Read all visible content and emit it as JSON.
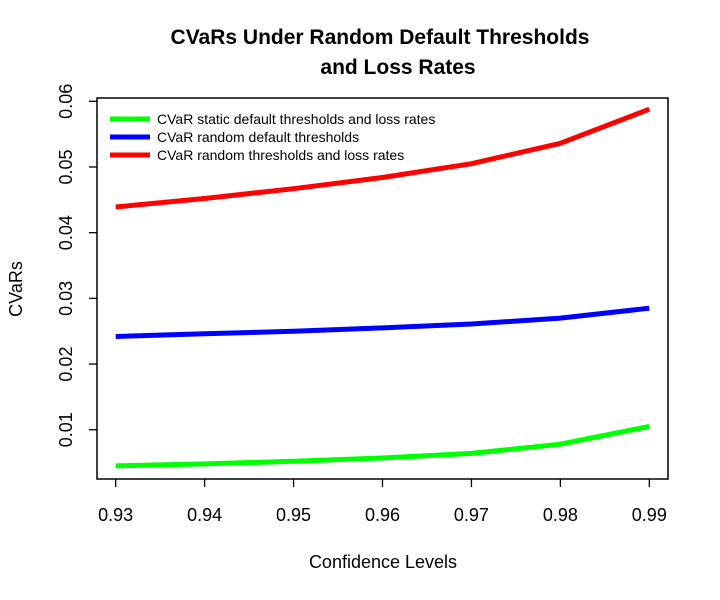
{
  "chart_data": {
    "type": "line",
    "title_lines": [
      "CVaRs Under Random Default Thresholds",
      "and Loss Rates"
    ],
    "xlabel": "Confidence Levels",
    "ylabel": "CVaRs",
    "x": [
      0.93,
      0.94,
      0.95,
      0.96,
      0.97,
      0.98,
      0.99
    ],
    "x_tick_labels": [
      "0.93",
      "0.94",
      "0.95",
      "0.96",
      "0.97",
      "0.98",
      "0.99"
    ],
    "y_ticks": [
      0.01,
      0.02,
      0.03,
      0.04,
      0.05,
      0.06
    ],
    "y_tick_labels": [
      "0.01",
      "0.02",
      "0.03",
      "0.04",
      "0.05",
      "0.06"
    ],
    "xlim": [
      0.9279,
      0.9921
    ],
    "ylim": [
      0.0025,
      0.0605
    ],
    "grid": false,
    "legend_position": "top-left",
    "series": [
      {
        "name": "CVaR static default thresholds and loss rates",
        "color": "#00ff00",
        "values": [
          0.0045,
          0.0048,
          0.0052,
          0.0057,
          0.0064,
          0.0078,
          0.0105
        ]
      },
      {
        "name": "CVaR random default thresholds",
        "color": "#0000ff",
        "values": [
          0.0242,
          0.0246,
          0.025,
          0.0255,
          0.0261,
          0.027,
          0.0285
        ]
      },
      {
        "name": "CVaR random thresholds and loss rates",
        "color": "#ff0000",
        "values": [
          0.0439,
          0.0452,
          0.0467,
          0.0484,
          0.0505,
          0.0536,
          0.0588
        ]
      }
    ]
  }
}
